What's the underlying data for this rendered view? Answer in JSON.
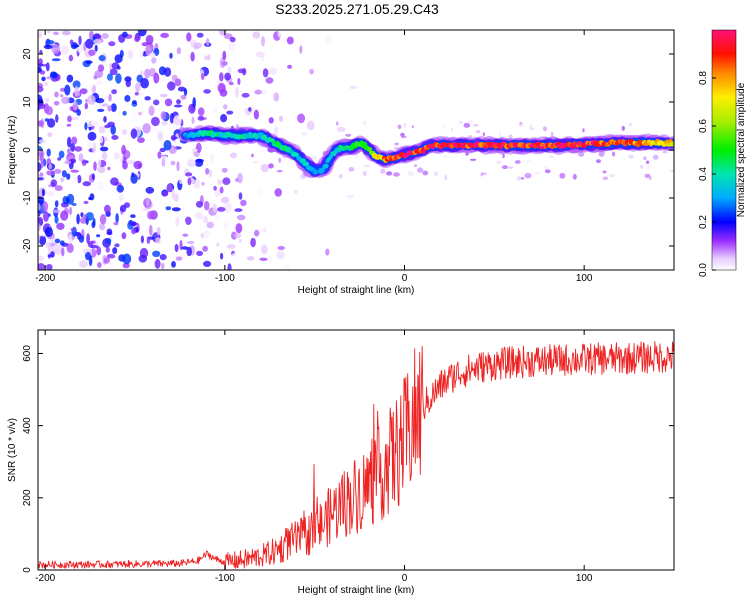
{
  "title": "S233.2025.271.05.29.C43",
  "chart_data": [
    {
      "type": "heatmap",
      "name": "spectrogram",
      "xlabel": "Height of straight line (km)",
      "ylabel": "Frequency (Hz)",
      "xlim": [
        -204,
        150
      ],
      "ylim": [
        -25,
        25
      ],
      "xticks": [
        -200,
        -100,
        0,
        100
      ],
      "yticks": [
        20,
        10,
        0,
        -10,
        -20
      ],
      "colorbar": {
        "label": "Normalized spectral amplitude",
        "range": [
          0,
          1
        ],
        "ticks": [
          0.0,
          0.2,
          0.4,
          0.6,
          0.8
        ]
      },
      "ridge": {
        "description": "peak frequency track vs height",
        "x": [
          -122,
          -110,
          -100,
          -90,
          -80,
          -75,
          -70,
          -65,
          -60,
          -55,
          -50,
          -45,
          -42,
          -38,
          -35,
          -30,
          -25,
          -22,
          -18,
          -15,
          -10,
          -5,
          0,
          5,
          10,
          15,
          30,
          60,
          90,
          120,
          150
        ],
        "y": [
          3,
          3.5,
          3,
          3,
          3,
          2,
          1,
          0,
          -1,
          -3,
          -4.5,
          -4,
          -2,
          0,
          0.5,
          0.5,
          1.5,
          1,
          -0.5,
          -1.5,
          -2,
          -1.5,
          -1,
          -0.5,
          0,
          1,
          1,
          1,
          1,
          1.5,
          1.5
        ],
        "amplitude": [
          0.3,
          0.4,
          0.4,
          0.4,
          0.35,
          0.4,
          0.45,
          0.4,
          0.35,
          0.35,
          0.3,
          0.3,
          0.35,
          0.35,
          0.4,
          0.45,
          0.5,
          0.5,
          0.6,
          0.75,
          0.8,
          0.85,
          0.95,
          0.95,
          0.9,
          0.9,
          0.95,
          0.9,
          0.95,
          0.85,
          0.7
        ]
      },
      "noise_region": {
        "x_from": -204,
        "x_to": -85,
        "amplitude_max": 0.25
      }
    },
    {
      "type": "line",
      "name": "snr",
      "xlabel": "Height of straight line (km)",
      "ylabel": "SNR (10 * v/v)",
      "xlim": [
        -204,
        150
      ],
      "ylim": [
        0,
        665
      ],
      "xticks": [
        -200,
        -100,
        0,
        100
      ],
      "yticks": [
        0,
        200,
        400,
        600
      ],
      "color": "#ee2222",
      "series": [
        {
          "name": "SNR",
          "x": [
            -204,
            -180,
            -160,
            -140,
            -125,
            -115,
            -110,
            -105,
            -100,
            -90,
            -80,
            -70,
            -65,
            -60,
            -55,
            -50,
            -45,
            -40,
            -35,
            -30,
            -25,
            -20,
            -15,
            -10,
            -5,
            0,
            5,
            10,
            15,
            20,
            25,
            30,
            40,
            50,
            60,
            70,
            80,
            90,
            100,
            110,
            120,
            130,
            140,
            150
          ],
          "y": [
            15,
            15,
            16,
            17,
            18,
            25,
            45,
            30,
            22,
            28,
            38,
            55,
            75,
            85,
            95,
            110,
            130,
            160,
            180,
            200,
            215,
            235,
            260,
            290,
            320,
            360,
            410,
            450,
            480,
            510,
            530,
            545,
            560,
            570,
            575,
            578,
            580,
            582,
            584,
            585,
            586,
            588,
            590,
            592
          ]
        }
      ]
    }
  ]
}
